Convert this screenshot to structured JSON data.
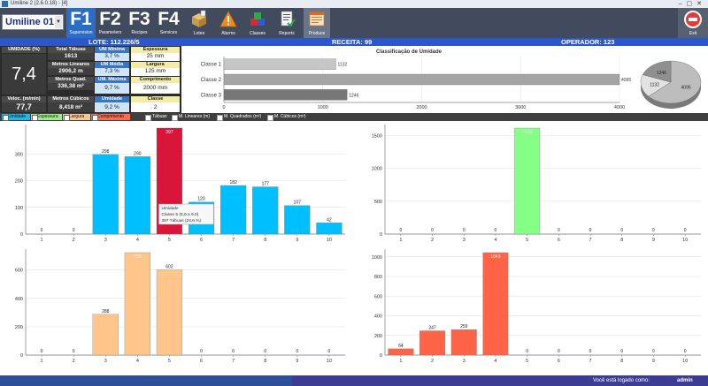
{
  "window": {
    "title": "Umiline 2 (2.6.0.18) - [4]"
  },
  "machine": {
    "name": "Umiline 01"
  },
  "fkeys": [
    {
      "key": "F1",
      "label": "Supervision"
    },
    {
      "key": "F2",
      "label": "Parameters"
    },
    {
      "key": "F3",
      "label": "Recipes"
    },
    {
      "key": "F4",
      "label": "Services"
    }
  ],
  "tools": [
    {
      "label": "Lotes",
      "icon": "box-icon"
    },
    {
      "label": "Alarms",
      "icon": "warning-icon"
    },
    {
      "label": "Classes",
      "icon": "cubes-icon"
    },
    {
      "label": "Reports",
      "icon": "report-icon"
    },
    {
      "label": "Produce",
      "icon": "produce-icon"
    }
  ],
  "exit": {
    "label": "Exit"
  },
  "lotbar": {
    "lote": "LOTE: 112.226/5",
    "receita": "RECEITA: 99",
    "operador": "OPERADOR: 123"
  },
  "info": {
    "umidade_label": "UMIDADE (%)",
    "umidade_value": "7,4",
    "total_tabuas_label": "Total Tábuas",
    "total_tabuas": "1613",
    "metros_lineares_label": "Metros Lineares",
    "metros_lineares": "2906,2 m",
    "metros_quad_label": "Metros Quad.",
    "metros_quad": "336,38 m²",
    "metros_cubicos_label": "Metros Cúbicos",
    "metros_cubicos": "8,418 m³",
    "veloc_label": "Veloc. (m/min)",
    "veloc": "77,7",
    "um_minima_label": "UM Mínima",
    "um_minima": "3,7 %",
    "um_media_label": "UM Média",
    "um_media": "7,3 %",
    "um_maxima_label": "UM. Máxima",
    "um_maxima": "9,7 %",
    "umidade2_label": "Umidade",
    "umidade2": "9,2 %",
    "espessura_label": "Espessura",
    "espessura": "25 mm",
    "largura_label": "Largura",
    "largura": "125 mm",
    "comprimento_label": "Comprimento",
    "comprimento": "2000 mm",
    "classe_label": "Classe",
    "classe": "2"
  },
  "legendbar": {
    "tabs": [
      "Umidade",
      "Espessura",
      "Largura",
      "Comprimento"
    ],
    "tab_colors": [
      "#1fb8e8",
      "#9dea8a",
      "#f9c78e",
      "#ff6a4d"
    ],
    "checks": [
      "Tábuas",
      "M. Lineares (m)",
      "M. Quadrados (m²)",
      "M. Cúbicos (m³)"
    ]
  },
  "status": {
    "text": "Você está logado como:",
    "user": "admin"
  },
  "chart_data": [
    {
      "type": "bar",
      "title": "Classificação de Umidade",
      "orientation": "horizontal",
      "categories": [
        "Classe 1",
        "Classe 2",
        "Classe 3"
      ],
      "values": [
        1132,
        4095,
        1246
      ],
      "xlim": [
        0,
        4000
      ],
      "xticks": [
        0,
        1000,
        2000,
        3000,
        4000
      ],
      "colors": [
        "#c6c6c6",
        "#a4a4a4",
        "#777777"
      ]
    },
    {
      "type": "pie",
      "values": [
        4095,
        1132,
        1246
      ],
      "labels": [
        "4095",
        "1132",
        "1246"
      ],
      "colors": [
        "#bdbdbd",
        "#e2e2e2",
        "#8f8f8f"
      ]
    },
    {
      "type": "bar",
      "categories": [
        "1",
        "2",
        "3",
        "4",
        "5",
        "6",
        "7",
        "8",
        "9",
        "10"
      ],
      "values": [
        0,
        0,
        298,
        290,
        397,
        120,
        182,
        177,
        107,
        42
      ],
      "ylim": [
        0,
        397
      ],
      "yticks": [
        0,
        100,
        200,
        300
      ],
      "color": "#00bfff",
      "highlight_index": 4,
      "highlight_color": "#d9163a",
      "tooltip": [
        "Umidade",
        "Classe 5 (8,0 a 9,0)",
        "397 Tábuas (24,6 %)"
      ]
    },
    {
      "type": "bar",
      "categories": [
        "1",
        "2",
        "3",
        "4",
        "5",
        "6",
        "7",
        "8",
        "9",
        "10"
      ],
      "values": [
        0,
        0,
        0,
        0,
        1613,
        0,
        0,
        0,
        0,
        0
      ],
      "ylim": [
        0,
        1613
      ],
      "yticks": [
        0,
        500,
        1000,
        1500
      ],
      "color": "#86ff86"
    },
    {
      "type": "bar",
      "categories": [
        "1",
        "2",
        "3",
        "4",
        "5",
        "6",
        "7",
        "8",
        "9",
        "10"
      ],
      "values": [
        0,
        0,
        288,
        723,
        602,
        0,
        0,
        0,
        0,
        0
      ],
      "ylim": [
        0,
        723
      ],
      "yticks": [
        0,
        200,
        400,
        600
      ],
      "color": "#ffc58a"
    },
    {
      "type": "bar",
      "categories": [
        "1",
        "2",
        "3",
        "4",
        "5",
        "6",
        "7",
        "8",
        "9",
        "10"
      ],
      "values": [
        64,
        247,
        259,
        1043,
        0,
        0,
        0,
        0,
        0,
        0
      ],
      "ylim": [
        0,
        1043
      ],
      "yticks": [
        0,
        200,
        400,
        600,
        800,
        1000
      ],
      "color": "#ff6347"
    }
  ]
}
